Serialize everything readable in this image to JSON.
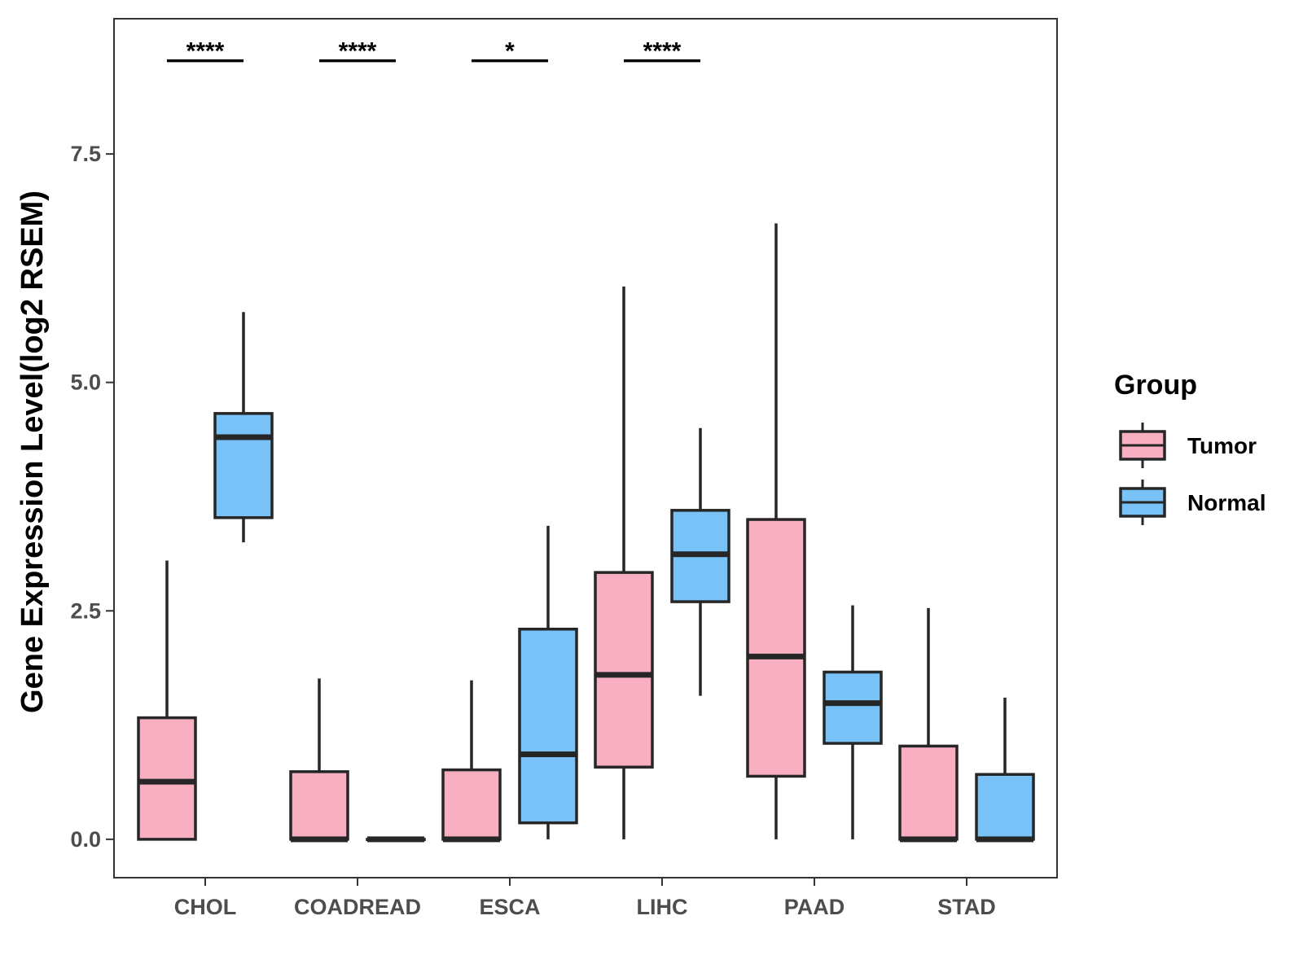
{
  "chart_data": {
    "type": "box",
    "title": "",
    "xlabel": "",
    "ylabel": "Gene Expression Level(log2 RSEM)",
    "ylim": [
      -0.42,
      8.98
    ],
    "yticks": [
      0.0,
      2.5,
      5.0,
      7.5
    ],
    "ytick_labels": [
      "0.0",
      "2.5",
      "5.0",
      "7.5"
    ],
    "categories": [
      "CHOL",
      "COADREAD",
      "ESCA",
      "LIHC",
      "PAAD",
      "STAD"
    ],
    "legend": {
      "title": "Group",
      "position": "right"
    },
    "series": [
      {
        "name": "Tumor",
        "color": "#F8AFC1",
        "boxes": [
          {
            "min": 0.0,
            "q1": 0.0,
            "median": 0.63,
            "q3": 1.33,
            "max": 3.05
          },
          {
            "min": 0.0,
            "q1": 0.0,
            "median": 0.0,
            "q3": 0.74,
            "max": 1.76
          },
          {
            "min": 0.0,
            "q1": 0.0,
            "median": 0.0,
            "q3": 0.76,
            "max": 1.74
          },
          {
            "min": 0.0,
            "q1": 0.79,
            "median": 1.8,
            "q3": 2.92,
            "max": 6.05
          },
          {
            "min": 0.0,
            "q1": 0.69,
            "median": 2.0,
            "q3": 3.5,
            "max": 6.74
          },
          {
            "min": 0.0,
            "q1": 0.0,
            "median": 0.0,
            "q3": 1.02,
            "max": 2.53
          }
        ]
      },
      {
        "name": "Normal",
        "color": "#78C2F8",
        "boxes": [
          {
            "min": 3.25,
            "q1": 3.52,
            "median": 4.4,
            "q3": 4.66,
            "max": 5.77
          },
          {
            "min": 0.0,
            "q1": 0.0,
            "median": 0.0,
            "q3": 0.0,
            "max": 0.0
          },
          {
            "min": 0.0,
            "q1": 0.18,
            "median": 0.93,
            "q3": 2.3,
            "max": 3.43
          },
          {
            "min": 1.57,
            "q1": 2.6,
            "median": 3.12,
            "q3": 3.6,
            "max": 4.5
          },
          {
            "min": 0.0,
            "q1": 1.05,
            "median": 1.49,
            "q3": 1.83,
            "max": 2.56
          },
          {
            "min": 0.0,
            "q1": 0.0,
            "median": 0.0,
            "q3": 0.71,
            "max": 1.55
          }
        ]
      }
    ],
    "significance": [
      {
        "category": "CHOL",
        "label": "****"
      },
      {
        "category": "COADREAD",
        "label": "****"
      },
      {
        "category": "ESCA",
        "label": "*"
      },
      {
        "category": "LIHC",
        "label": "****"
      }
    ],
    "significance_y": 8.52
  }
}
